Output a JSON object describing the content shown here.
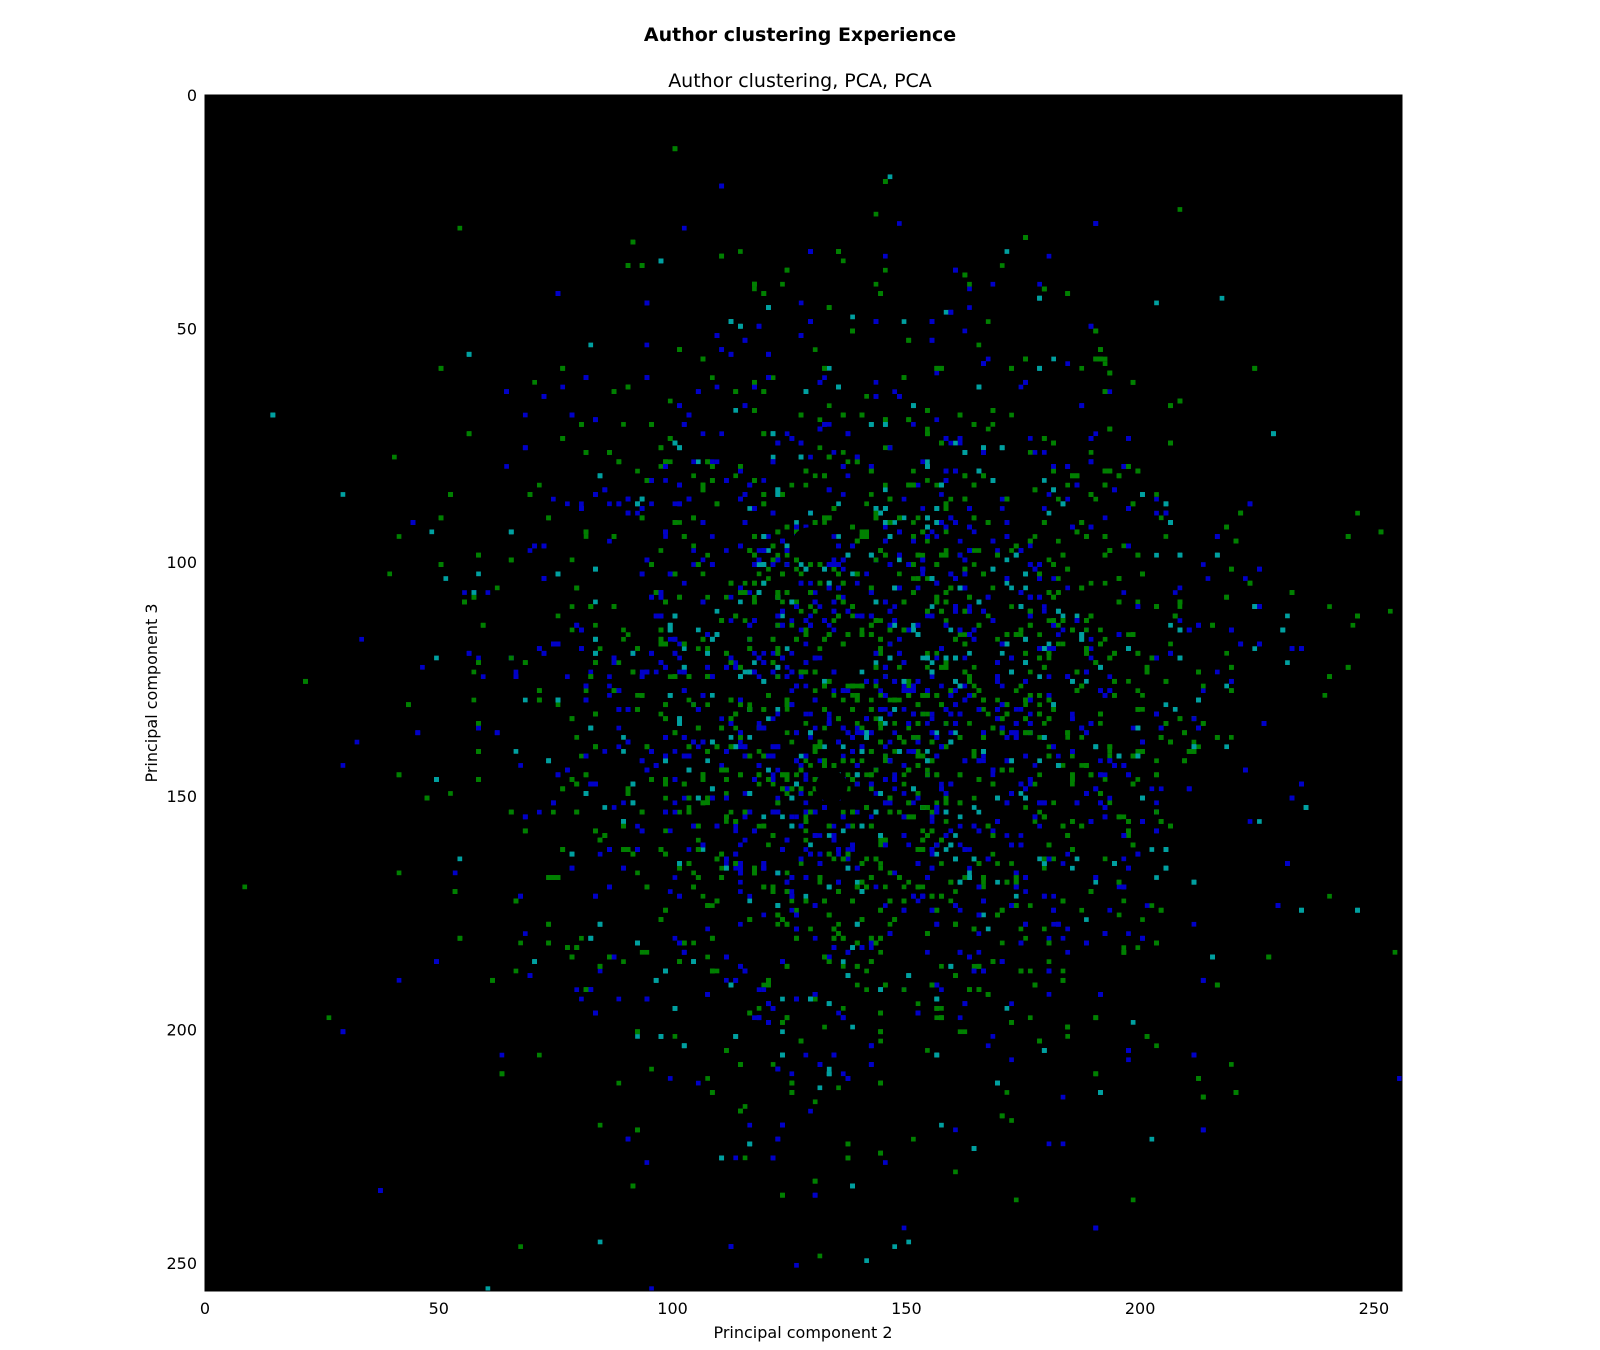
{
  "figure": {
    "suptitle": "Author clustering Experience",
    "title": "Author clustering, PCA, PCA"
  },
  "chart_data": {
    "type": "heatmap",
    "title": "Author clustering, PCA, PCA",
    "xlabel": "Principal component 2",
    "ylabel": "Principal component 3",
    "xlim": [
      0,
      256
    ],
    "ylim": [
      256,
      0
    ],
    "y_axis_inverted": true,
    "xticks": [
      0,
      50,
      100,
      150,
      200,
      250
    ],
    "yticks": [
      0,
      50,
      100,
      150,
      200,
      250
    ],
    "grid": false,
    "background_color": "#000000",
    "series": [
      {
        "color": "#008000"
      },
      {
        "color": "#0000c8"
      },
      {
        "color": "#00a0a0"
      }
    ],
    "density_cloud": {
      "center_x": 140,
      "center_y": 125,
      "extent_x": [
        0,
        256
      ],
      "extent_y": [
        5,
        256
      ]
    },
    "holes": [
      {
        "x": 129,
        "y": 96
      },
      {
        "x": 134,
        "y": 148
      }
    ]
  }
}
